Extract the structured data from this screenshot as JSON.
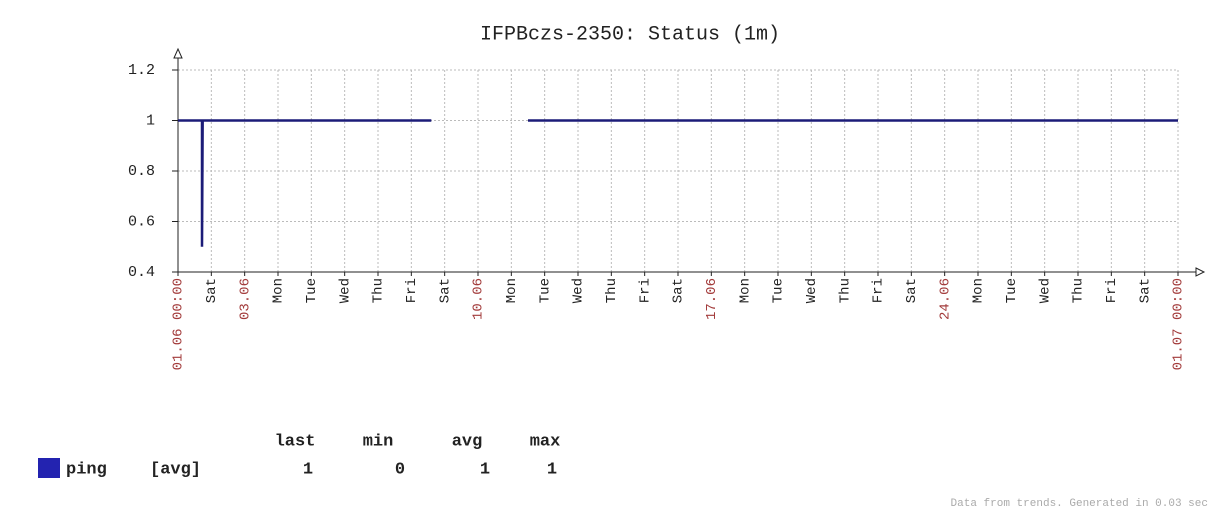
{
  "chart_data": {
    "type": "line",
    "title": "IFPBczs-2350: Status  (1m)",
    "xlim": [
      0,
      30
    ],
    "xticks": [
      {
        "value": 0,
        "label": "01.06 00:00"
      },
      {
        "value": 1,
        "label": "Sat"
      },
      {
        "value": 2,
        "label": "03.06"
      },
      {
        "value": 3,
        "label": "Mon"
      },
      {
        "value": 4,
        "label": "Tue"
      },
      {
        "value": 5,
        "label": "Wed"
      },
      {
        "value": 6,
        "label": "Thu"
      },
      {
        "value": 7,
        "label": "Fri"
      },
      {
        "value": 8,
        "label": "Sat"
      },
      {
        "value": 9,
        "label": "10.06"
      },
      {
        "value": 10,
        "label": "Mon"
      },
      {
        "value": 11,
        "label": "Tue"
      },
      {
        "value": 12,
        "label": "Wed"
      },
      {
        "value": 13,
        "label": "Thu"
      },
      {
        "value": 14,
        "label": "Fri"
      },
      {
        "value": 15,
        "label": "Sat"
      },
      {
        "value": 16,
        "label": "17.06"
      },
      {
        "value": 17,
        "label": "Mon"
      },
      {
        "value": 18,
        "label": "Tue"
      },
      {
        "value": 19,
        "label": "Wed"
      },
      {
        "value": 20,
        "label": "Thu"
      },
      {
        "value": 21,
        "label": "Fri"
      },
      {
        "value": 22,
        "label": "Sat"
      },
      {
        "value": 23,
        "label": "24.06"
      },
      {
        "value": 24,
        "label": "Mon"
      },
      {
        "value": 25,
        "label": "Tue"
      },
      {
        "value": 26,
        "label": "Wed"
      },
      {
        "value": 27,
        "label": "Thu"
      },
      {
        "value": 28,
        "label": "Fri"
      },
      {
        "value": 29,
        "label": "Sat"
      },
      {
        "value": 30,
        "label": "01.07 00:00"
      }
    ],
    "ylim": [
      0.4,
      1.2
    ],
    "yticks": [
      0.4,
      0.6,
      0.8,
      1,
      1.2
    ],
    "grid": true,
    "series": [
      {
        "name": "ping",
        "color": "#1c1c78",
        "x": [
          0,
          0.72,
          0.72,
          0.74,
          7.6,
          8.5,
          10.5,
          30
        ],
        "values": [
          1,
          1,
          0.5,
          1,
          1,
          null,
          1,
          1
        ]
      }
    ],
    "legend": {
      "swatch_color": "#2323b0",
      "function": "[avg]",
      "headers": [
        "last",
        "min",
        "avg",
        "max"
      ],
      "values": [
        1,
        0,
        1,
        1
      ]
    },
    "footer": "Data from trends. Generated in 0.03 sec"
  }
}
